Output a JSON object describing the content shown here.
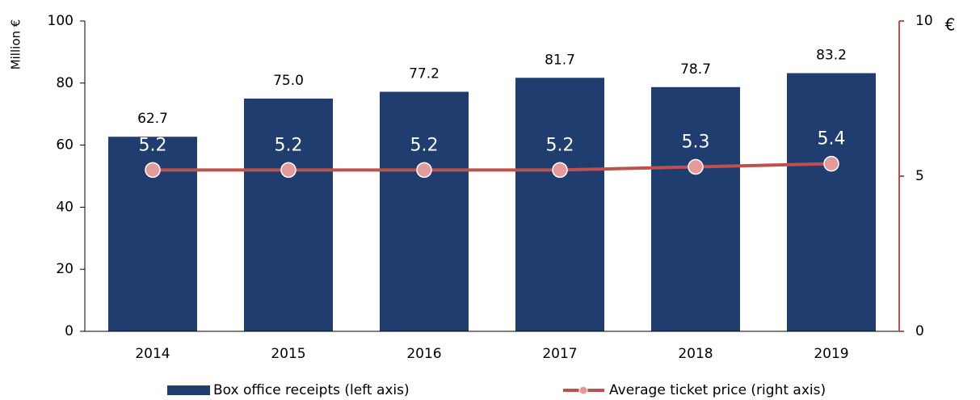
{
  "chart_data": {
    "type": "bar",
    "categories": [
      "2014",
      "2015",
      "2016",
      "2017",
      "2018",
      "2019"
    ],
    "y_label": "Million €",
    "y2_label": "€",
    "ylim": [
      0,
      100
    ],
    "yticks": [
      0,
      20,
      40,
      60,
      80,
      100
    ],
    "y2lim": [
      0,
      10
    ],
    "y2ticks": [
      0,
      5,
      10
    ],
    "series": [
      {
        "name": "Box office receipts (left axis)",
        "type": "bar",
        "color": "#1f3d6e",
        "values": [
          62.7,
          75.0,
          77.2,
          81.7,
          78.7,
          83.2
        ],
        "value_labels": [
          "62.7",
          "75.0",
          "77.2",
          "81.7",
          "78.7",
          "83.2"
        ]
      },
      {
        "name": "Average ticket price (right axis)",
        "type": "line",
        "axis": "y2",
        "color": "#c0504d",
        "values": [
          5.2,
          5.2,
          5.2,
          5.2,
          5.3,
          5.4
        ]
      }
    ]
  }
}
